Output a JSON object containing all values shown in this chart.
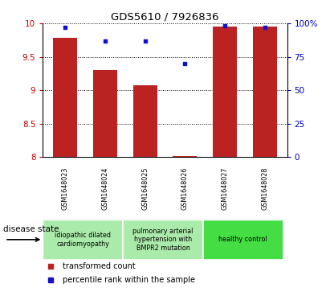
{
  "title": "GDS5610 / 7926836",
  "samples": [
    "GSM1648023",
    "GSM1648024",
    "GSM1648025",
    "GSM1648026",
    "GSM1648027",
    "GSM1648028"
  ],
  "bar_values": [
    9.78,
    9.3,
    9.07,
    8.02,
    9.95,
    9.95
  ],
  "percentile_values": [
    97,
    87,
    87,
    70,
    98,
    97
  ],
  "bar_color": "#BB2222",
  "dot_color": "#1111CC",
  "ylim_left": [
    8,
    10
  ],
  "ylim_right": [
    0,
    100
  ],
  "yticks_left": [
    8,
    8.5,
    9,
    9.5,
    10
  ],
  "yticks_right": [
    0,
    25,
    50,
    75,
    100
  ],
  "ytick_labels_right": [
    "0",
    "25",
    "50",
    "75",
    "100%"
  ],
  "legend_bar_label": "transformed count",
  "legend_dot_label": "percentile rank within the sample",
  "disease_state_label": "disease state",
  "bg_color": "#FFFFFF",
  "grid_color": "#000000",
  "tick_color_left": "#CC0000",
  "tick_color_right": "#0000BB",
  "label_bg": "#C8C8C8",
  "group1_color": "#AAEAAA",
  "group2_color": "#AAEAAA",
  "group3_color": "#44DD44"
}
